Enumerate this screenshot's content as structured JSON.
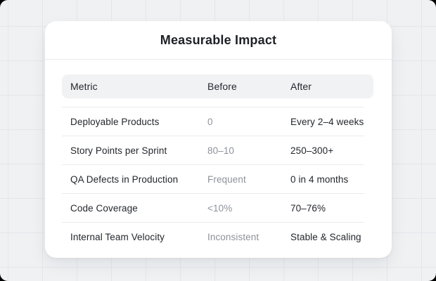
{
  "card": {
    "title": "Measurable Impact",
    "table": {
      "columns": [
        "Metric",
        "Before",
        "After"
      ],
      "rows": [
        {
          "metric": "Deployable Products",
          "before": "0",
          "after": "Every 2–4 weeks"
        },
        {
          "metric": "Story Points per Sprint",
          "before": "80–10",
          "after": "250–300+"
        },
        {
          "metric": "QA Defects in Production",
          "before": "Frequent",
          "after": "0 in 4 months"
        },
        {
          "metric": "Code Coverage",
          "before": "<10%",
          "after": "70–76%"
        },
        {
          "metric": "Internal Team Velocity",
          "before": "Inconsistent",
          "after": "Stable & Scaling"
        }
      ]
    }
  },
  "colors": {
    "screen_background": "#eff1f3",
    "grid_line": "#e4e7eb",
    "card_background": "#ffffff",
    "header_row_background": "#f1f2f4",
    "divider": "#e9ebee",
    "text_dark": "#23272c",
    "text_muted": "#8d929a",
    "screen_corner_backdrop": "#000000"
  }
}
